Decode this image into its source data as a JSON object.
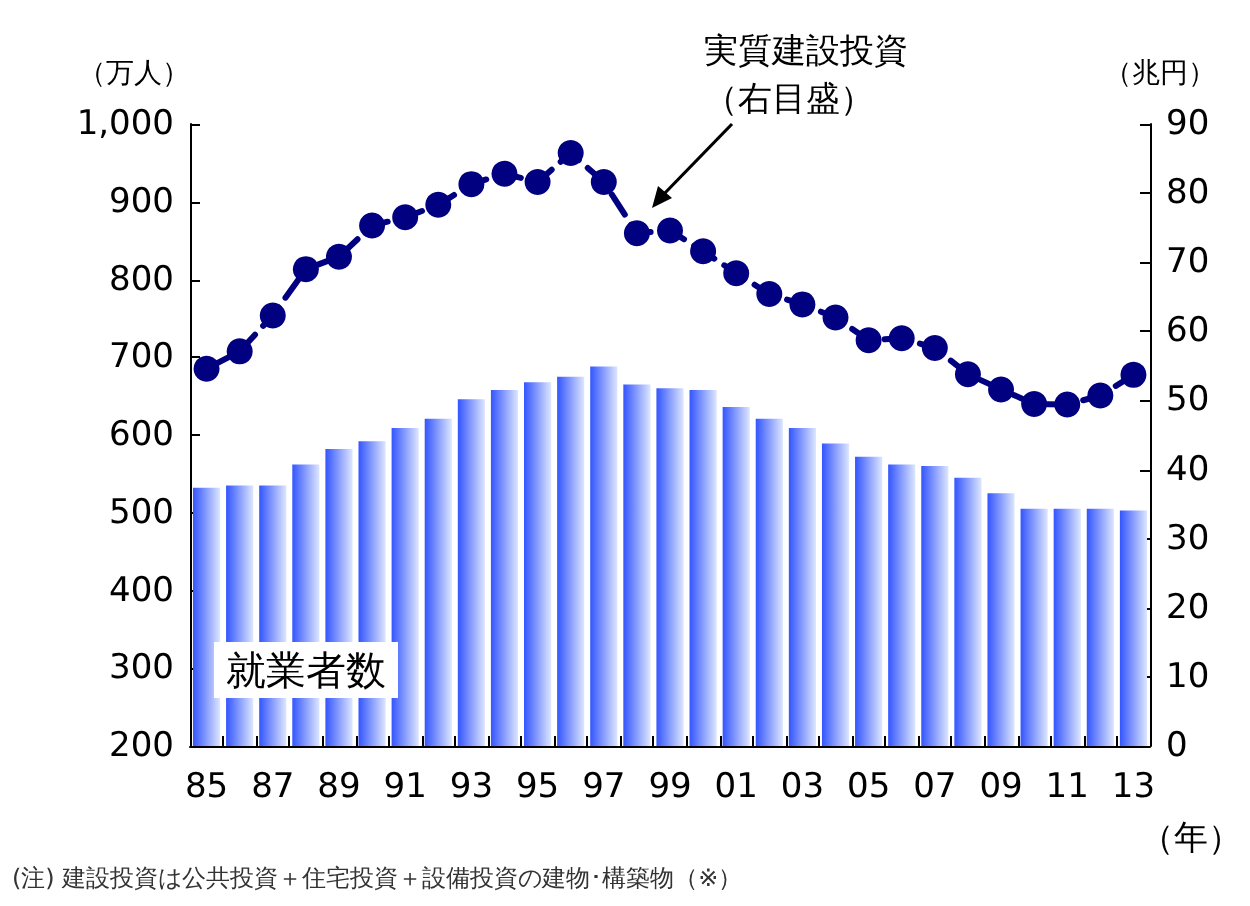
{
  "chart_data": {
    "type": "bar",
    "categories": [
      "85",
      null,
      "87",
      null,
      "89",
      null,
      "91",
      null,
      "93",
      null,
      "95",
      null,
      "97",
      null,
      "99",
      null,
      "01",
      null,
      "03",
      null,
      "05",
      null,
      "07",
      null,
      "09",
      null,
      "11",
      null,
      "13"
    ],
    "series": [
      {
        "name": "就業者数",
        "color": "#3355ff",
        "values": [
          532,
          535,
          535,
          562,
          582,
          592,
          609,
          621,
          646,
          658,
          668,
          675,
          688,
          665,
          660,
          658,
          636,
          621,
          609,
          589,
          572,
          562,
          560,
          545,
          525,
          505,
          505,
          505,
          503
        ]
      },
      {
        "name": "実質建設投資（右目盛）",
        "type": "line",
        "axis": "y2",
        "color": "#000080",
        "marker": "circle",
        "line_style": "dashed",
        "values": [
          54.6,
          57.1,
          62.3,
          69.0,
          70.8,
          75.3,
          76.5,
          78.3,
          81.3,
          82.8,
          81.6,
          85.8,
          81.6,
          74.2,
          74.6,
          71.6,
          68.4,
          65.4,
          63.9,
          62.0,
          58.7,
          59.0,
          57.6,
          53.8,
          51.6,
          49.5,
          49.4,
          50.7,
          53.7
        ]
      }
    ],
    "ylabel": "（万人）",
    "y2label": "（兆円）",
    "xlabel": "（年）",
    "ylim": [
      200,
      1000
    ],
    "yticks": [
      200,
      300,
      400,
      500,
      600,
      700,
      800,
      900,
      {
        "value": 1000,
        "label": "1,000"
      }
    ],
    "y2lim": [
      0,
      90
    ],
    "y2ticks": [
      0,
      10,
      20,
      30,
      40,
      50,
      60,
      70,
      80,
      90
    ],
    "grid": false,
    "legend": false,
    "annotations": [
      "(注) 建設投資は公共投資＋住宅投資＋設備投資の建物･構築物（※）"
    ]
  }
}
